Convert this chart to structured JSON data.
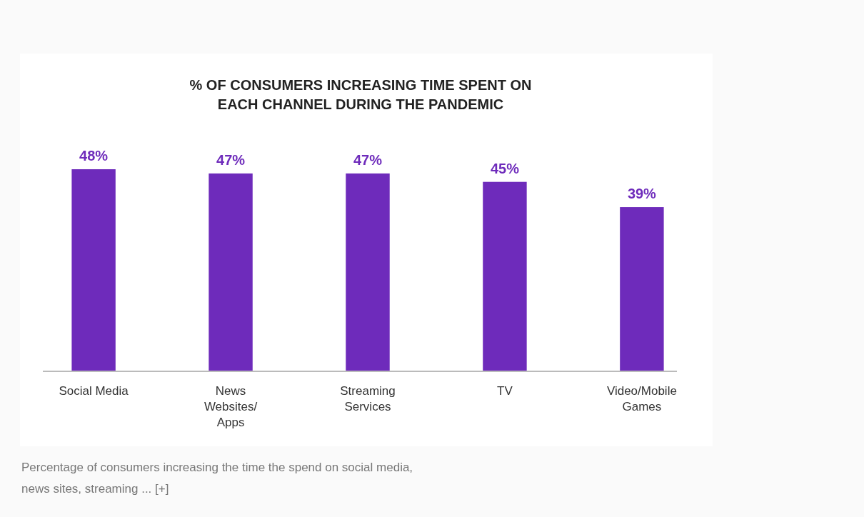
{
  "chart_data": {
    "type": "bar",
    "title": "% OF CONSUMERS INCREASING TIME SPENT ON EACH CHANNEL DURING THE PANDEMIC",
    "categories": [
      "Social Media",
      "News Websites/ Apps",
      "Streaming Services",
      "TV",
      "Video/Mobile Games"
    ],
    "values": [
      48,
      47,
      47,
      45,
      39
    ],
    "value_labels": [
      "48%",
      "47%",
      "47%",
      "45%",
      "39%"
    ],
    "color": "#6e2bbb",
    "annotations": [
      "Percentage of consumers increasing the time the spend on social media, news sites, streaming ... [+]"
    ]
  }
}
